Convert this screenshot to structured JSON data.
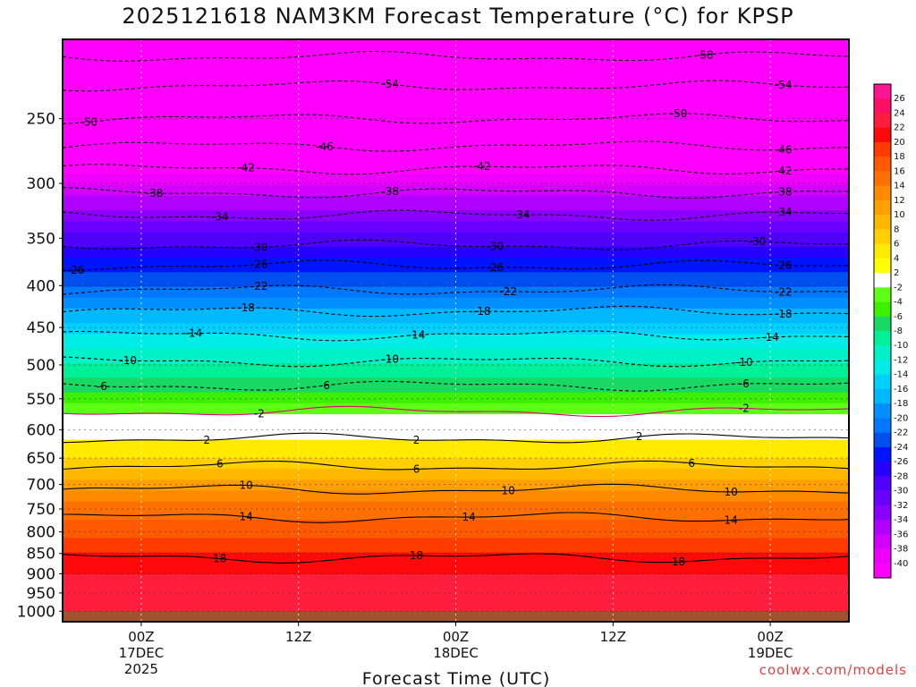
{
  "chart_data": {
    "type": "heatmap",
    "title": "2025121618 NAM3KM Forecast Temperature (°C) for KPSP",
    "xlabel": "Forecast Time (UTC)",
    "ylabel": "",
    "y_ticks": [
      250,
      300,
      350,
      400,
      450,
      500,
      550,
      600,
      650,
      700,
      750,
      800,
      850,
      900,
      950,
      1000
    ],
    "x_ticks": [
      {
        "hours": 6,
        "lines": [
          "00Z",
          "17DEC",
          "2025"
        ]
      },
      {
        "hours": 18,
        "lines": [
          "12Z"
        ]
      },
      {
        "hours": 30,
        "lines": [
          "00Z",
          "18DEC"
        ]
      },
      {
        "hours": 42,
        "lines": [
          "12Z"
        ]
      },
      {
        "hours": 54,
        "lines": [
          "00Z",
          "19DEC"
        ]
      }
    ],
    "xlim": [
      0,
      60
    ],
    "ylim": [
      200,
      1030
    ],
    "surface_pressure": 1000,
    "colorbar": {
      "labels": [
        26,
        24,
        22,
        20,
        18,
        16,
        14,
        12,
        10,
        8,
        6,
        4,
        2,
        -2,
        -4,
        -6,
        -8,
        -10,
        -12,
        -14,
        -16,
        -18,
        -20,
        -22,
        -24,
        -26,
        -28,
        -30,
        -32,
        -34,
        -36,
        -38,
        -40
      ],
      "colors": [
        "#ff1493",
        "#ff0f64",
        "#ff1e3c",
        "#ff0a0a",
        "#ff3b00",
        "#ff5a00",
        "#ff7000",
        "#ff8a00",
        "#ffa000",
        "#ffb800",
        "#ffd000",
        "#ffea00",
        "#ffff00",
        "#ffffff",
        "#5dff14",
        "#3cf000",
        "#1ad864",
        "#00f09a",
        "#00f0c8",
        "#00ece6",
        "#00d0ff",
        "#00b8ff",
        "#0090ff",
        "#0078ff",
        "#0050f0",
        "#0014ff",
        "#2800ff",
        "#5000ff",
        "#6a00ff",
        "#8a00ff",
        "#b000ff",
        "#d200ff",
        "#ee00ff",
        "#ff00ff"
      ]
    },
    "profile": {
      "pressure": [
        200,
        250,
        300,
        350,
        400,
        450,
        500,
        550,
        580,
        600,
        650,
        700,
        750,
        800,
        850,
        900,
        950,
        1000
      ],
      "temperature": [
        -58,
        -50,
        -38,
        -29,
        -22,
        -15,
        -10,
        -5,
        -1,
        1,
        4,
        9,
        13,
        15,
        18,
        20,
        21,
        22
      ]
    },
    "contours": [
      {
        "level": -58,
        "pressure": 210,
        "label_hours": [
          49
        ]
      },
      {
        "level": -54,
        "pressure": 228,
        "label_hours": [
          25,
          55
        ]
      },
      {
        "level": -50,
        "pressure": 250,
        "label_hours": [
          2,
          47
        ]
      },
      {
        "level": -46,
        "pressure": 270,
        "label_hours": [
          20,
          55
        ]
      },
      {
        "level": -42,
        "pressure": 288,
        "label_hours": [
          14,
          32,
          55
        ]
      },
      {
        "level": -38,
        "pressure": 308,
        "label_hours": [
          7,
          25,
          55
        ]
      },
      {
        "level": -34,
        "pressure": 328,
        "label_hours": [
          12,
          35,
          55
        ]
      },
      {
        "level": -30,
        "pressure": 357,
        "label_hours": [
          15,
          33,
          53
        ]
      },
      {
        "level": -26,
        "pressure": 378,
        "label_hours": [
          1,
          15,
          33,
          55
        ]
      },
      {
        "level": -22,
        "pressure": 405,
        "label_hours": [
          15,
          34,
          55
        ]
      },
      {
        "level": -18,
        "pressure": 430,
        "label_hours": [
          14,
          32,
          55
        ]
      },
      {
        "level": -14,
        "pressure": 460,
        "label_hours": [
          10,
          27,
          54
        ]
      },
      {
        "level": -10,
        "pressure": 495,
        "label_hours": [
          5,
          25,
          52
        ]
      },
      {
        "level": -6,
        "pressure": 530,
        "label_hours": [
          3,
          20,
          52
        ]
      },
      {
        "level": -2,
        "pressure": 570,
        "label_hours": [
          15,
          52
        ]
      },
      {
        "level": 2,
        "pressure": 615,
        "label_hours": [
          11,
          27,
          44
        ]
      },
      {
        "level": 6,
        "pressure": 665,
        "label_hours": [
          12,
          27,
          48
        ]
      },
      {
        "level": 10,
        "pressure": 710,
        "label_hours": [
          14,
          34,
          51
        ]
      },
      {
        "level": 14,
        "pressure": 768,
        "label_hours": [
          14,
          31,
          51
        ]
      },
      {
        "level": 18,
        "pressure": 860,
        "label_hours": [
          12,
          27,
          47
        ]
      }
    ],
    "palette_colors": {
      "surface": "#a0522d",
      "frame": "#000000"
    }
  },
  "credit": "coolwx.com/models"
}
